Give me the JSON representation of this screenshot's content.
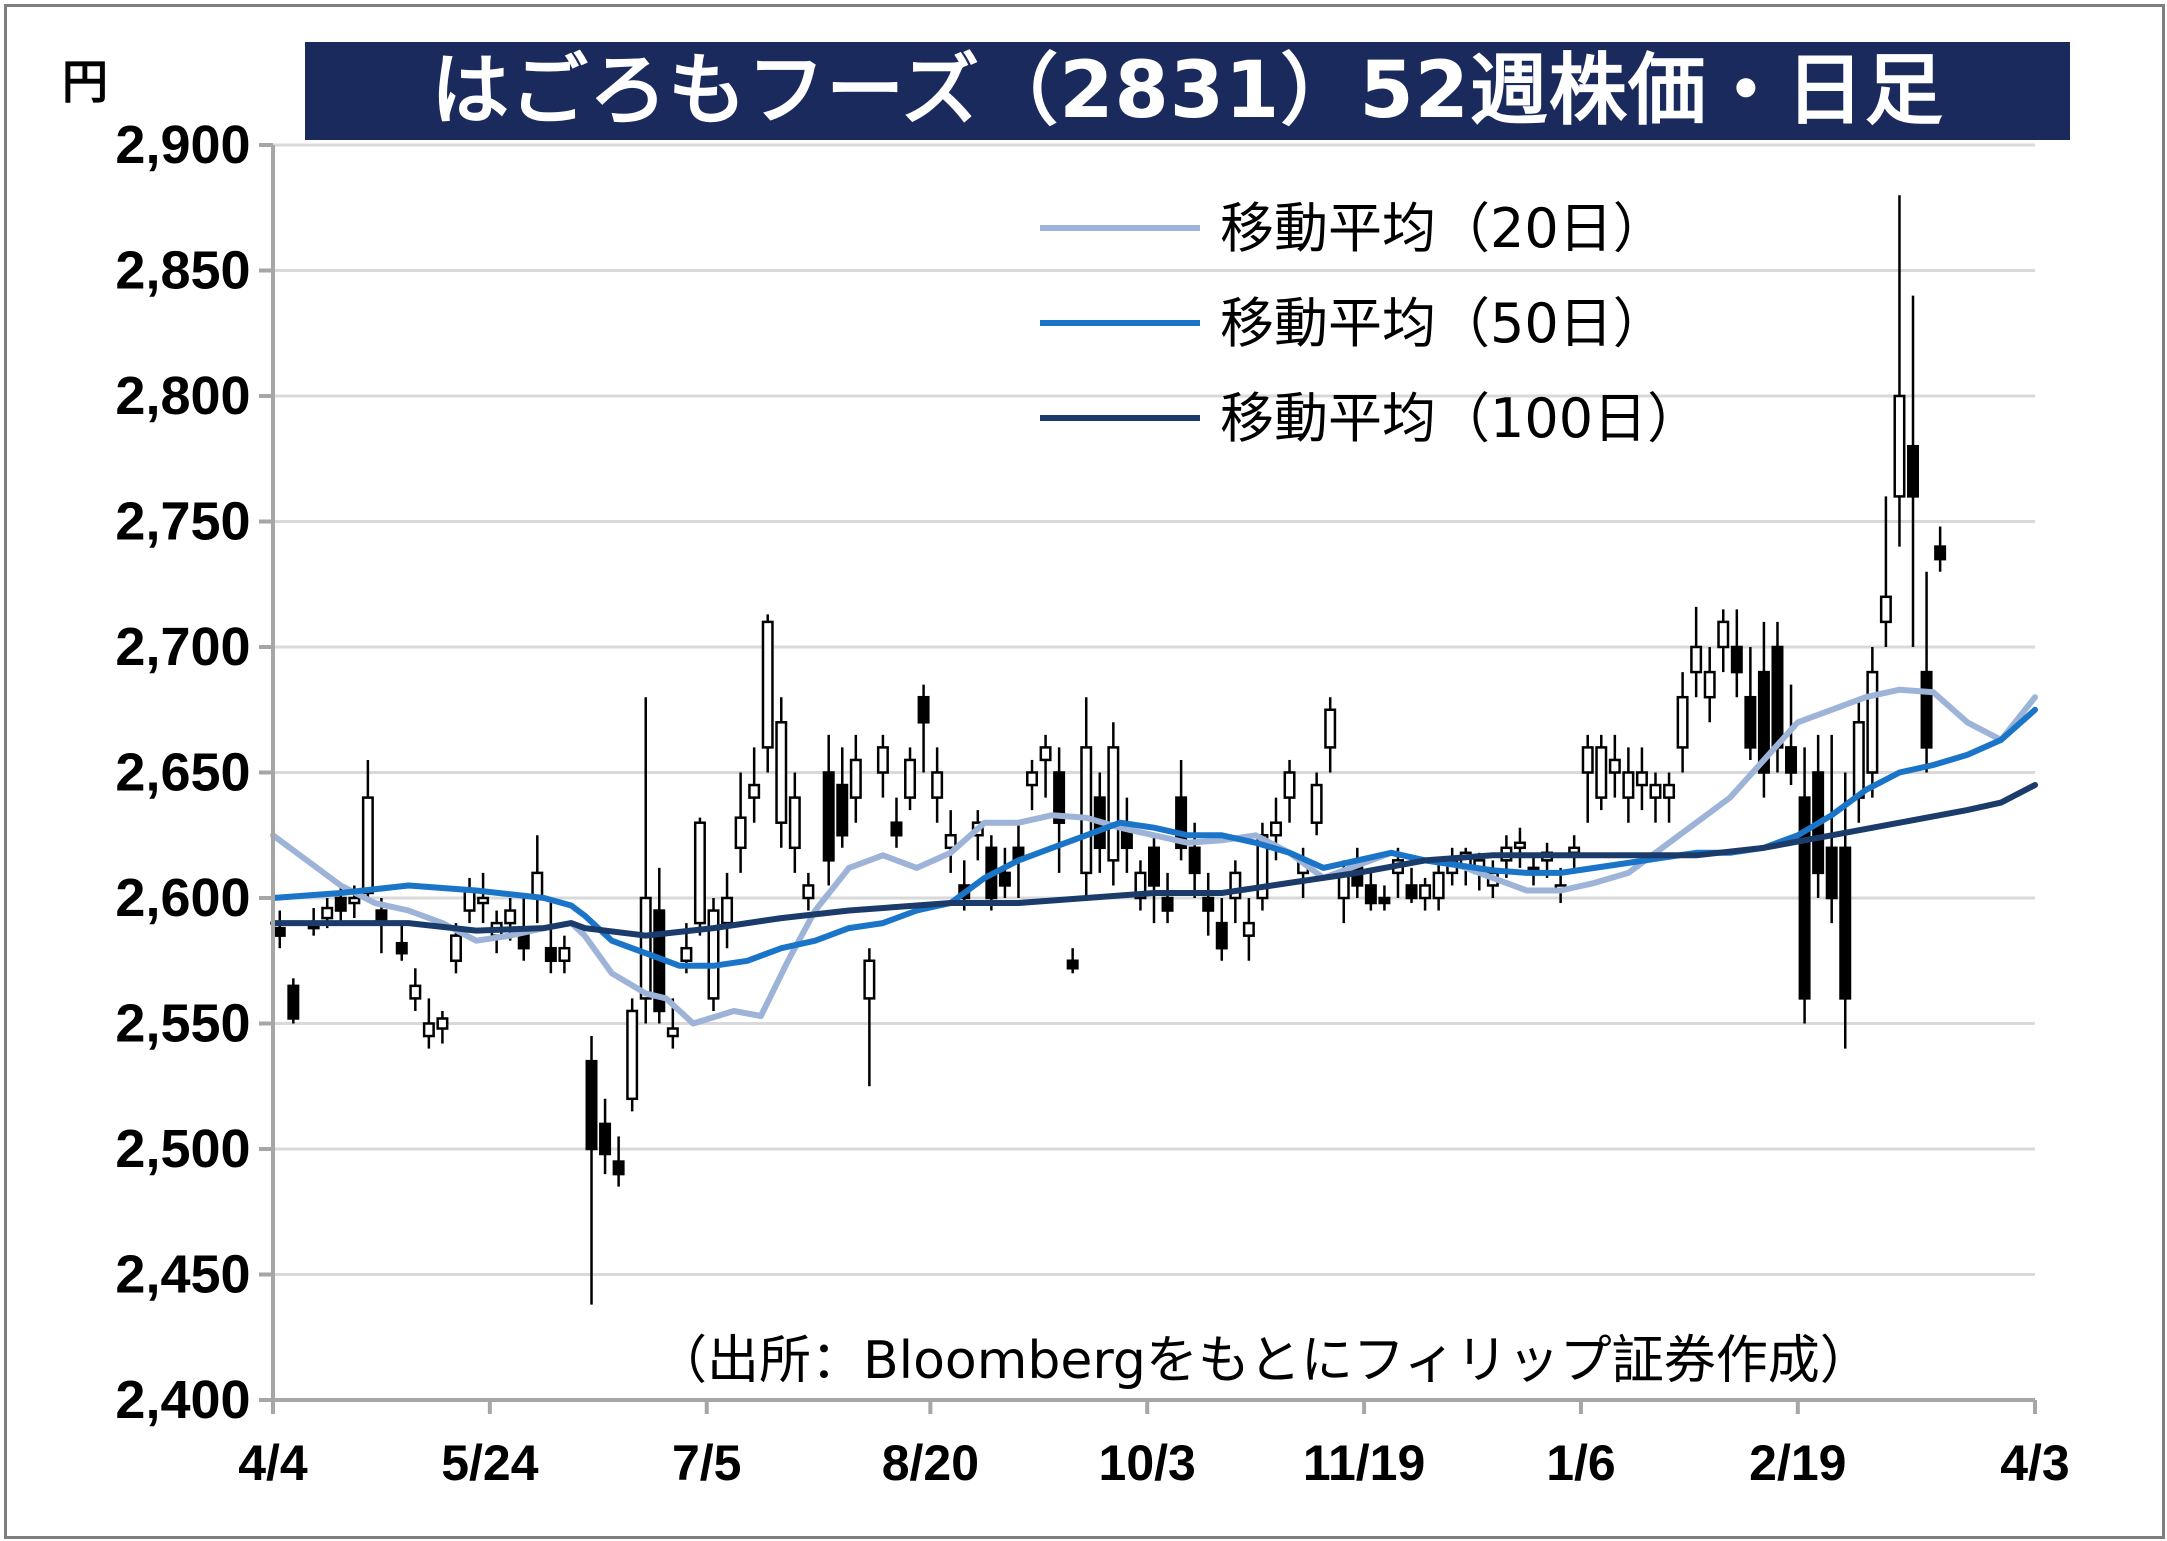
{
  "title": "はごろもフーズ（2831）52週株価・日足",
  "unit": "円",
  "source": "（出所：Bloombergをもとにフィリップ証券作成）",
  "chart_data": {
    "type": "candlestick",
    "title": "はごろもフーズ（2831）52週株価・日足",
    "ylabel": "円",
    "ylim": [
      2400,
      2900
    ],
    "yticks": [
      2900,
      2850,
      2800,
      2750,
      2700,
      2650,
      2600,
      2550,
      2500,
      2450,
      2400
    ],
    "ytick_labels": [
      "2,900",
      "2,850",
      "2,800",
      "2,750",
      "2,700",
      "2,650",
      "2,600",
      "2,550",
      "2,500",
      "2,450",
      "2,400"
    ],
    "xlim": [
      0,
      260
    ],
    "xticks": [
      0,
      32,
      64,
      97,
      129,
      161,
      193,
      225,
      260
    ],
    "xtick_labels": [
      "4/4",
      "5/24",
      "7/5",
      "8/20",
      "10/3",
      "11/19",
      "1/6",
      "2/19",
      "4/3"
    ],
    "grid": true,
    "legend": {
      "position": "top-right",
      "entries": [
        {
          "name": "移動平均（20日）",
          "color": "#9db4d8"
        },
        {
          "name": "移動平均（50日）",
          "color": "#1a75c9"
        },
        {
          "name": "移動平均（100日）",
          "color": "#1b3b6b"
        }
      ]
    },
    "moving_averages": [
      {
        "name": "移動平均（20日）",
        "color": "#9db4d8",
        "points": [
          [
            0,
            2625
          ],
          [
            5,
            2615
          ],
          [
            10,
            2605
          ],
          [
            15,
            2598
          ],
          [
            20,
            2595
          ],
          [
            25,
            2590
          ],
          [
            30,
            2583
          ],
          [
            35,
            2585
          ],
          [
            40,
            2588
          ],
          [
            44,
            2590
          ],
          [
            46,
            2585
          ],
          [
            50,
            2570
          ],
          [
            55,
            2562
          ],
          [
            58,
            2560
          ],
          [
            62,
            2550
          ],
          [
            68,
            2555
          ],
          [
            72,
            2553
          ],
          [
            76,
            2575
          ],
          [
            80,
            2595
          ],
          [
            85,
            2612
          ],
          [
            90,
            2617
          ],
          [
            95,
            2612
          ],
          [
            100,
            2618
          ],
          [
            105,
            2630
          ],
          [
            110,
            2630
          ],
          [
            115,
            2633
          ],
          [
            120,
            2632
          ],
          [
            125,
            2628
          ],
          [
            130,
            2625
          ],
          [
            135,
            2622
          ],
          [
            140,
            2623
          ],
          [
            145,
            2625
          ],
          [
            150,
            2618
          ],
          [
            155,
            2608
          ],
          [
            160,
            2613
          ],
          [
            165,
            2618
          ],
          [
            170,
            2615
          ],
          [
            175,
            2613
          ],
          [
            180,
            2608
          ],
          [
            185,
            2603
          ],
          [
            190,
            2603
          ],
          [
            195,
            2606
          ],
          [
            200,
            2610
          ],
          [
            205,
            2620
          ],
          [
            210,
            2630
          ],
          [
            215,
            2640
          ],
          [
            220,
            2655
          ],
          [
            225,
            2670
          ],
          [
            230,
            2675
          ],
          [
            235,
            2680
          ],
          [
            240,
            2683
          ],
          [
            245,
            2682
          ],
          [
            250,
            2670
          ],
          [
            255,
            2663
          ],
          [
            260,
            2680
          ]
        ]
      },
      {
        "name": "移動平均（50日）",
        "color": "#1a75c9",
        "points": [
          [
            0,
            2600
          ],
          [
            10,
            2602
          ],
          [
            20,
            2605
          ],
          [
            30,
            2603
          ],
          [
            40,
            2600
          ],
          [
            44,
            2597
          ],
          [
            46,
            2593
          ],
          [
            50,
            2583
          ],
          [
            56,
            2577
          ],
          [
            60,
            2573
          ],
          [
            65,
            2573
          ],
          [
            70,
            2575
          ],
          [
            75,
            2580
          ],
          [
            80,
            2583
          ],
          [
            85,
            2588
          ],
          [
            90,
            2590
          ],
          [
            95,
            2595
          ],
          [
            100,
            2598
          ],
          [
            105,
            2608
          ],
          [
            110,
            2615
          ],
          [
            115,
            2620
          ],
          [
            120,
            2625
          ],
          [
            125,
            2630
          ],
          [
            130,
            2628
          ],
          [
            135,
            2625
          ],
          [
            140,
            2625
          ],
          [
            145,
            2622
          ],
          [
            150,
            2618
          ],
          [
            155,
            2612
          ],
          [
            160,
            2615
          ],
          [
            165,
            2618
          ],
          [
            170,
            2615
          ],
          [
            175,
            2613
          ],
          [
            180,
            2611
          ],
          [
            185,
            2610
          ],
          [
            190,
            2610
          ],
          [
            195,
            2612
          ],
          [
            200,
            2614
          ],
          [
            205,
            2616
          ],
          [
            210,
            2618
          ],
          [
            215,
            2618
          ],
          [
            220,
            2620
          ],
          [
            225,
            2625
          ],
          [
            230,
            2633
          ],
          [
            235,
            2643
          ],
          [
            240,
            2650
          ],
          [
            245,
            2653
          ],
          [
            250,
            2657
          ],
          [
            255,
            2663
          ],
          [
            260,
            2675
          ]
        ]
      },
      {
        "name": "移動平均（100日）",
        "color": "#1b3b6b",
        "points": [
          [
            0,
            2590
          ],
          [
            10,
            2590
          ],
          [
            20,
            2590
          ],
          [
            30,
            2587
          ],
          [
            40,
            2588
          ],
          [
            44,
            2590
          ],
          [
            46,
            2588
          ],
          [
            55,
            2585
          ],
          [
            65,
            2588
          ],
          [
            75,
            2592
          ],
          [
            85,
            2595
          ],
          [
            95,
            2597
          ],
          [
            100,
            2598
          ],
          [
            110,
            2598
          ],
          [
            120,
            2600
          ],
          [
            130,
            2602
          ],
          [
            140,
            2602
          ],
          [
            150,
            2606
          ],
          [
            160,
            2610
          ],
          [
            170,
            2615
          ],
          [
            180,
            2617
          ],
          [
            190,
            2617
          ],
          [
            200,
            2617
          ],
          [
            210,
            2617
          ],
          [
            220,
            2620
          ],
          [
            230,
            2625
          ],
          [
            240,
            2630
          ],
          [
            250,
            2635
          ],
          [
            255,
            2638
          ],
          [
            260,
            2645
          ]
        ]
      }
    ],
    "candles_note": "daily OHLC candles, approximate",
    "candles": [
      [
        1,
        2588,
        2595,
        2580,
        2585
      ],
      [
        3,
        2565,
        2568,
        2550,
        2552
      ],
      [
        6,
        2590,
        2596,
        2585,
        2588
      ],
      [
        8,
        2592,
        2600,
        2588,
        2596
      ],
      [
        10,
        2600,
        2606,
        2590,
        2595
      ],
      [
        12,
        2598,
        2605,
        2592,
        2600
      ],
      [
        14,
        2602,
        2655,
        2600,
        2640
      ],
      [
        16,
        2595,
        2600,
        2578,
        2590
      ],
      [
        19,
        2582,
        2590,
        2575,
        2578
      ],
      [
        21,
        2560,
        2572,
        2555,
        2565
      ],
      [
        23,
        2545,
        2560,
        2540,
        2550
      ],
      [
        25,
        2548,
        2555,
        2542,
        2552
      ],
      [
        27,
        2575,
        2590,
        2570,
        2585
      ],
      [
        29,
        2595,
        2608,
        2590,
        2603
      ],
      [
        31,
        2598,
        2610,
        2590,
        2600
      ],
      [
        33,
        2585,
        2595,
        2578,
        2590
      ],
      [
        35,
        2590,
        2600,
        2583,
        2595
      ],
      [
        37,
        2585,
        2600,
        2575,
        2580
      ],
      [
        39,
        2600,
        2625,
        2590,
        2610
      ],
      [
        41,
        2580,
        2600,
        2570,
        2575
      ],
      [
        43,
        2575,
        2585,
        2570,
        2580
      ],
      [
        47,
        2535,
        2545,
        2438,
        2500
      ],
      [
        49,
        2510,
        2520,
        2490,
        2498
      ],
      [
        51,
        2495,
        2505,
        2485,
        2490
      ],
      [
        53,
        2520,
        2560,
        2515,
        2555
      ],
      [
        55,
        2560,
        2680,
        2550,
        2600
      ],
      [
        57,
        2595,
        2612,
        2550,
        2555
      ],
      [
        59,
        2545,
        2560,
        2540,
        2548
      ],
      [
        61,
        2575,
        2590,
        2570,
        2580
      ],
      [
        63,
        2590,
        2632,
        2585,
        2630
      ],
      [
        65,
        2560,
        2600,
        2555,
        2595
      ],
      [
        67,
        2590,
        2610,
        2580,
        2600
      ],
      [
        69,
        2620,
        2650,
        2610,
        2632
      ],
      [
        71,
        2640,
        2660,
        2630,
        2645
      ],
      [
        73,
        2660,
        2713,
        2650,
        2710
      ],
      [
        75,
        2630,
        2680,
        2620,
        2670
      ],
      [
        77,
        2620,
        2650,
        2610,
        2640
      ],
      [
        79,
        2600,
        2610,
        2595,
        2605
      ],
      [
        82,
        2650,
        2665,
        2605,
        2615
      ],
      [
        84,
        2645,
        2660,
        2620,
        2625
      ],
      [
        86,
        2640,
        2665,
        2630,
        2655
      ],
      [
        88,
        2560,
        2580,
        2525,
        2575
      ],
      [
        90,
        2650,
        2665,
        2640,
        2660
      ],
      [
        92,
        2630,
        2640,
        2620,
        2625
      ],
      [
        94,
        2640,
        2660,
        2635,
        2655
      ],
      [
        96,
        2680,
        2685,
        2650,
        2670
      ],
      [
        98,
        2640,
        2660,
        2630,
        2650
      ],
      [
        100,
        2620,
        2635,
        2610,
        2625
      ],
      [
        102,
        2605,
        2615,
        2595,
        2600
      ],
      [
        104,
        2625,
        2635,
        2615,
        2630
      ],
      [
        106,
        2620,
        2625,
        2595,
        2600
      ],
      [
        108,
        2610,
        2620,
        2600,
        2605
      ],
      [
        110,
        2620,
        2630,
        2600,
        2615
      ],
      [
        112,
        2645,
        2655,
        2635,
        2650
      ],
      [
        114,
        2655,
        2665,
        2640,
        2660
      ],
      [
        116,
        2650,
        2660,
        2610,
        2630
      ],
      [
        118,
        2575,
        2580,
        2570,
        2572
      ],
      [
        120,
        2610,
        2680,
        2600,
        2660
      ],
      [
        122,
        2640,
        2650,
        2610,
        2620
      ],
      [
        124,
        2615,
        2670,
        2605,
        2660
      ],
      [
        126,
        2630,
        2640,
        2610,
        2620
      ],
      [
        128,
        2600,
        2615,
        2595,
        2610
      ],
      [
        130,
        2620,
        2625,
        2590,
        2605
      ],
      [
        132,
        2600,
        2610,
        2590,
        2595
      ],
      [
        134,
        2640,
        2655,
        2615,
        2620
      ],
      [
        136,
        2620,
        2630,
        2600,
        2610
      ],
      [
        138,
        2600,
        2610,
        2585,
        2595
      ],
      [
        140,
        2590,
        2600,
        2575,
        2580
      ],
      [
        142,
        2600,
        2615,
        2590,
        2610
      ],
      [
        144,
        2585,
        2600,
        2575,
        2590
      ],
      [
        146,
        2600,
        2630,
        2595,
        2625
      ],
      [
        148,
        2625,
        2640,
        2615,
        2630
      ],
      [
        150,
        2640,
        2655,
        2630,
        2650
      ],
      [
        152,
        2610,
        2620,
        2600,
        2615
      ],
      [
        154,
        2630,
        2650,
        2625,
        2645
      ],
      [
        156,
        2660,
        2680,
        2650,
        2675
      ],
      [
        158,
        2600,
        2615,
        2590,
        2610
      ],
      [
        160,
        2615,
        2620,
        2600,
        2605
      ],
      [
        162,
        2605,
        2610,
        2595,
        2598
      ],
      [
        164,
        2600,
        2605,
        2595,
        2598
      ],
      [
        166,
        2610,
        2620,
        2600,
        2615
      ],
      [
        168,
        2605,
        2612,
        2598,
        2600
      ],
      [
        170,
        2600,
        2608,
        2595,
        2605
      ],
      [
        172,
        2600,
        2615,
        2595,
        2610
      ],
      [
        174,
        2610,
        2620,
        2605,
        2615
      ],
      [
        176,
        2612,
        2620,
        2605,
        2618
      ],
      [
        178,
        2610,
        2618,
        2603,
        2615
      ],
      [
        180,
        2605,
        2615,
        2600,
        2610
      ],
      [
        182,
        2615,
        2625,
        2608,
        2620
      ],
      [
        184,
        2620,
        2628,
        2612,
        2622
      ],
      [
        186,
        2612,
        2618,
        2605,
        2610
      ],
      [
        188,
        2615,
        2622,
        2608,
        2618
      ],
      [
        190,
        2603,
        2612,
        2598,
        2605
      ],
      [
        192,
        2618,
        2625,
        2612,
        2620
      ],
      [
        194,
        2650,
        2665,
        2630,
        2660
      ],
      [
        196,
        2640,
        2665,
        2635,
        2660
      ],
      [
        198,
        2650,
        2665,
        2640,
        2655
      ],
      [
        200,
        2640,
        2660,
        2630,
        2650
      ],
      [
        202,
        2645,
        2660,
        2635,
        2650
      ],
      [
        204,
        2640,
        2650,
        2630,
        2645
      ],
      [
        206,
        2640,
        2650,
        2630,
        2645
      ],
      [
        208,
        2660,
        2690,
        2650,
        2680
      ],
      [
        210,
        2690,
        2716,
        2680,
        2700
      ],
      [
        212,
        2680,
        2700,
        2670,
        2690
      ],
      [
        214,
        2700,
        2715,
        2690,
        2710
      ],
      [
        216,
        2700,
        2715,
        2680,
        2690
      ],
      [
        218,
        2680,
        2700,
        2655,
        2660
      ],
      [
        220,
        2690,
        2710,
        2640,
        2650
      ],
      [
        222,
        2700,
        2710,
        2650,
        2660
      ],
      [
        224,
        2660,
        2685,
        2645,
        2650
      ],
      [
        226,
        2640,
        2660,
        2550,
        2560
      ],
      [
        228,
        2650,
        2665,
        2600,
        2610
      ],
      [
        230,
        2620,
        2665,
        2590,
        2600
      ],
      [
        232,
        2620,
        2650,
        2540,
        2560
      ],
      [
        234,
        2640,
        2680,
        2630,
        2670
      ],
      [
        236,
        2650,
        2700,
        2640,
        2690
      ],
      [
        238,
        2710,
        2760,
        2700,
        2720
      ],
      [
        240,
        2760,
        2880,
        2740,
        2800
      ],
      [
        242,
        2780,
        2840,
        2700,
        2760
      ],
      [
        244,
        2690,
        2730,
        2650,
        2660
      ],
      [
        246,
        2740,
        2748,
        2730,
        2735
      ]
    ]
  }
}
